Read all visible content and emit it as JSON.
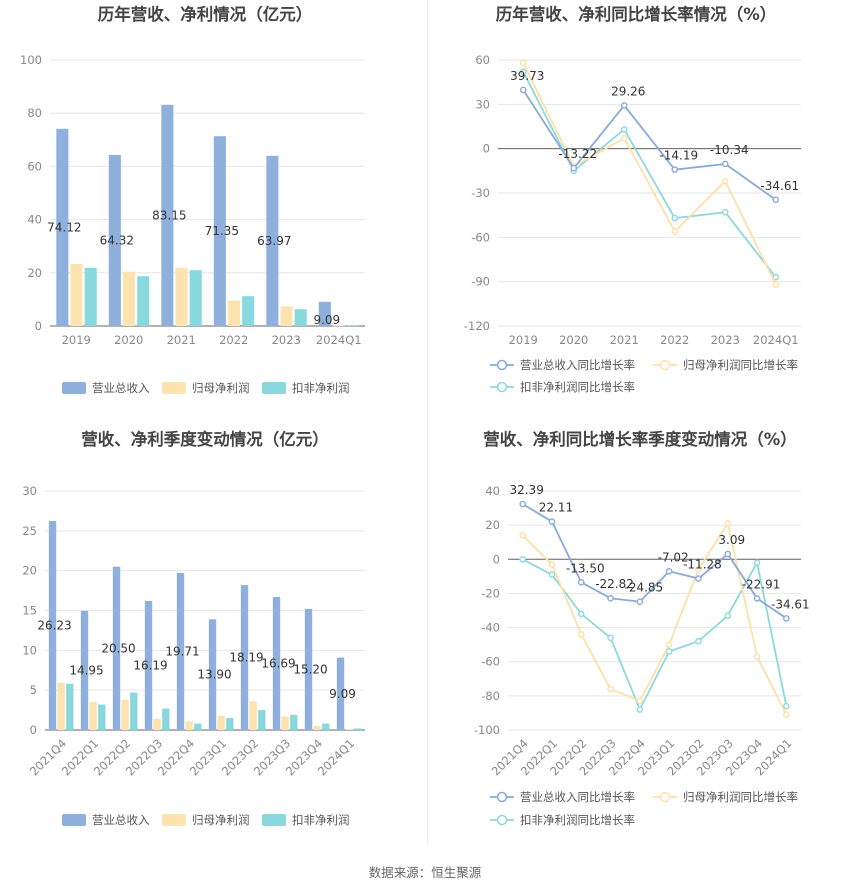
{
  "colors": {
    "revenue": "#8fb0dd",
    "net_profit": "#fde3b0",
    "deducted_profit": "#88d8dd",
    "revenue_line": "#8aa9d8",
    "net_line": "#fde0a8",
    "deducted_line": "#8ed8dc"
  },
  "source": "数据来源：恒生聚源",
  "chart_data": [
    {
      "id": "annual_amounts",
      "type": "bar",
      "title": "历年营收、净利情况（亿元）",
      "categories": [
        "2019",
        "2020",
        "2021",
        "2022",
        "2023",
        "2024Q1"
      ],
      "ylim": [
        0,
        100
      ],
      "yticks": [
        "0",
        "20",
        "40",
        "60",
        "80",
        "100"
      ],
      "grid": true,
      "legend_position": "bottom",
      "series": [
        {
          "name": "营业总收入",
          "values": [
            74.12,
            64.32,
            83.15,
            71.35,
            63.97,
            9.09
          ],
          "labels": [
            "74.12",
            "64.32",
            "83.15",
            "71.35",
            "63.97",
            "9.09"
          ]
        },
        {
          "name": "归母净利润",
          "values": [
            23.3,
            20.4,
            21.9,
            9.6,
            7.4,
            0.15
          ]
        },
        {
          "name": "扣非净利润",
          "values": [
            21.9,
            18.7,
            21.0,
            11.2,
            6.3,
            0.25
          ]
        }
      ]
    },
    {
      "id": "annual_growth",
      "type": "line",
      "title": "历年营收、净利同比增长率情况（%）",
      "categories": [
        "2019",
        "2020",
        "2021",
        "2022",
        "2023",
        "2024Q1"
      ],
      "ylim": [
        -120,
        60
      ],
      "yticks": [
        "60",
        "30",
        "0",
        "-30",
        "-60",
        "-90",
        "-120"
      ],
      "grid": true,
      "legend_position": "bottom",
      "series": [
        {
          "name": "营业总收入同比增长率",
          "values": [
            39.73,
            -13.22,
            29.26,
            -14.19,
            -10.34,
            -34.61
          ],
          "labels": [
            "39.73",
            "-13.22",
            "29.26",
            "-14.19",
            "-10.34",
            "-34.61"
          ]
        },
        {
          "name": "归母净利润同比增长率",
          "values": [
            58,
            -12,
            7,
            -56,
            -22,
            -92
          ]
        },
        {
          "name": "扣非净利润同比增长率",
          "values": [
            52,
            -15,
            13,
            -47,
            -43,
            -87
          ]
        }
      ]
    },
    {
      "id": "quarterly_amounts",
      "type": "bar",
      "title": "营收、净利季度变动情况（亿元）",
      "categories": [
        "2021Q4",
        "2022Q1",
        "2022Q2",
        "2022Q3",
        "2022Q4",
        "2023Q1",
        "2023Q2",
        "2023Q3",
        "2023Q4",
        "2024Q1"
      ],
      "ylim": [
        0,
        30
      ],
      "yticks": [
        "0",
        "5",
        "10",
        "15",
        "20",
        "25",
        "30"
      ],
      "grid": true,
      "legend_position": "bottom",
      "series": [
        {
          "name": "营业总收入",
          "values": [
            26.23,
            14.95,
            20.5,
            16.19,
            19.71,
            13.9,
            18.19,
            16.69,
            15.2,
            9.09
          ],
          "labels": [
            "26.23",
            "14.95",
            "20.50",
            "16.19",
            "19.71",
            "13.90",
            "18.19",
            "16.69",
            "15.20",
            "9.09"
          ]
        },
        {
          "name": "归母净利润",
          "values": [
            5.9,
            3.5,
            3.8,
            1.4,
            1.1,
            1.8,
            3.6,
            1.7,
            0.5,
            0.1
          ]
        },
        {
          "name": "扣非净利润",
          "values": [
            5.8,
            3.2,
            4.7,
            2.7,
            0.8,
            1.5,
            2.5,
            1.9,
            0.8,
            0.2
          ]
        }
      ]
    },
    {
      "id": "quarterly_growth",
      "type": "line",
      "title": "营收、净利同比增长率季度变动情况（%）",
      "categories": [
        "2021Q4",
        "2022Q1",
        "2022Q2",
        "2022Q3",
        "2022Q4",
        "2023Q1",
        "2023Q2",
        "2023Q3",
        "2023Q4",
        "2024Q1"
      ],
      "ylim": [
        -100,
        40
      ],
      "yticks": [
        "40",
        "20",
        "0",
        "-20",
        "-40",
        "-60",
        "-80",
        "-100"
      ],
      "grid": true,
      "legend_position": "bottom",
      "series": [
        {
          "name": "营业总收入同比增长率",
          "values": [
            32.39,
            22.11,
            -13.5,
            -22.82,
            -24.85,
            -7.02,
            -11.28,
            3.09,
            -22.91,
            -34.61
          ],
          "labels": [
            "32.39",
            "22.11",
            "-13.50",
            "-22.82",
            "-24.85",
            "-7.02",
            "-11.28",
            "3.09",
            "-22.91",
            "-34.61"
          ]
        },
        {
          "name": "归母净利润同比增长率",
          "values": [
            14,
            -3,
            -44,
            -76,
            -83,
            -50,
            -6,
            21,
            -57,
            -91
          ]
        },
        {
          "name": "扣非净利润同比增长率",
          "values": [
            0,
            -9,
            -32,
            -46,
            -88,
            -54,
            -48,
            -33,
            -2,
            -86
          ]
        }
      ]
    }
  ]
}
